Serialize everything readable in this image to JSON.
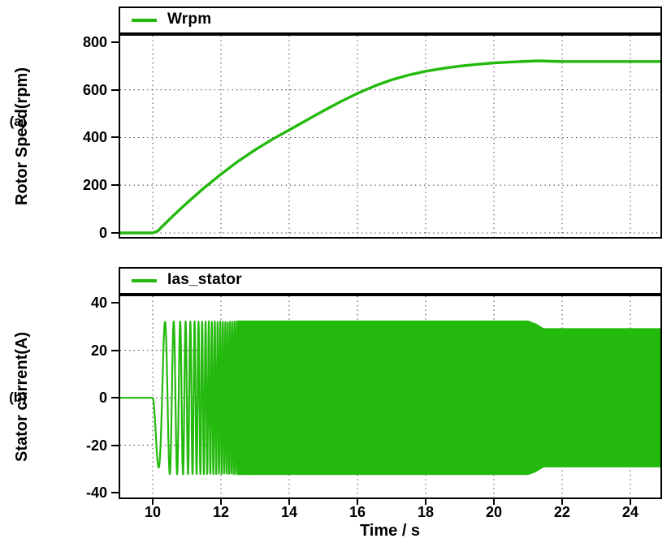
{
  "figure": {
    "panel_labels": [
      "(a)",
      "(b)"
    ],
    "series_color": "#23b90d",
    "frame_color": "#000000",
    "grid_color": "#3c3c3c",
    "background": "#ffffff"
  },
  "chart_data": [
    {
      "type": "line",
      "panel": "a",
      "legend": "Wrpm",
      "ylabel": "Rotor Speed(rpm)",
      "xlabel": "",
      "xlim": [
        9,
        24.93
      ],
      "ylim": [
        -24,
        834
      ],
      "xticks": [
        10,
        12,
        14,
        16,
        18,
        20,
        22,
        24
      ],
      "yticks": [
        0,
        200,
        400,
        600,
        800
      ],
      "gridlines_y": [
        0,
        200,
        400,
        600
      ],
      "grid": "dotted",
      "show_x_tick_labels": false,
      "steady_state_rpm": 719,
      "points": [
        [
          9,
          0
        ],
        [
          9.5,
          0
        ],
        [
          10,
          0
        ],
        [
          10.15,
          8
        ],
        [
          10.3,
          30
        ],
        [
          10.6,
          72
        ],
        [
          11,
          125
        ],
        [
          11.5,
          188
        ],
        [
          12,
          246
        ],
        [
          12.5,
          300
        ],
        [
          13,
          348
        ],
        [
          13.5,
          392
        ],
        [
          14,
          432
        ],
        [
          14.5,
          472
        ],
        [
          15,
          512
        ],
        [
          15.5,
          550
        ],
        [
          16,
          585
        ],
        [
          16.5,
          616
        ],
        [
          17,
          642
        ],
        [
          17.5,
          662
        ],
        [
          18,
          678
        ],
        [
          18.5,
          690
        ],
        [
          19,
          700
        ],
        [
          19.5,
          707
        ],
        [
          20,
          713
        ],
        [
          20.5,
          717
        ],
        [
          21,
          720
        ],
        [
          21.3,
          722
        ],
        [
          21.7,
          720
        ],
        [
          22,
          719
        ],
        [
          22.5,
          719
        ],
        [
          23,
          719
        ],
        [
          23.5,
          719
        ],
        [
          24,
          719
        ],
        [
          24.5,
          719
        ],
        [
          24.93,
          719
        ]
      ]
    },
    {
      "type": "line",
      "panel": "b",
      "legend": "Ias_stator",
      "ylabel": "Stator current(A)",
      "xlabel": "Time / s",
      "xlim": [
        9,
        24.93
      ],
      "ylim": [
        -42.7,
        43.5
      ],
      "xticks": [
        10,
        12,
        14,
        16,
        18,
        20,
        22,
        24
      ],
      "yticks": [
        -40,
        -20,
        0,
        20,
        40
      ],
      "gridlines_y": [
        -20,
        0,
        20
      ],
      "grid": "dotted",
      "show_x_tick_labels": true,
      "signal": {
        "description": "stator phase-A current: zero until start, chirp transient, then dense ~constant-amplitude band",
        "zero_until_s": 10,
        "chirp": {
          "f0_hz": 1.0,
          "k_hz_per_s": 6.0,
          "amp_peak_A": 32.2,
          "amp_rise_tau_s": 0.07,
          "until_s": 13
        },
        "band": {
          "from_s": 12.5,
          "amp_A": 32.2,
          "taper_start_s": 21.0,
          "taper_end_s": 21.45,
          "amp_after_A": 29.0
        },
        "first_dip": {
          "t_s": 10.17,
          "value_A": -29.3
        }
      }
    }
  ]
}
